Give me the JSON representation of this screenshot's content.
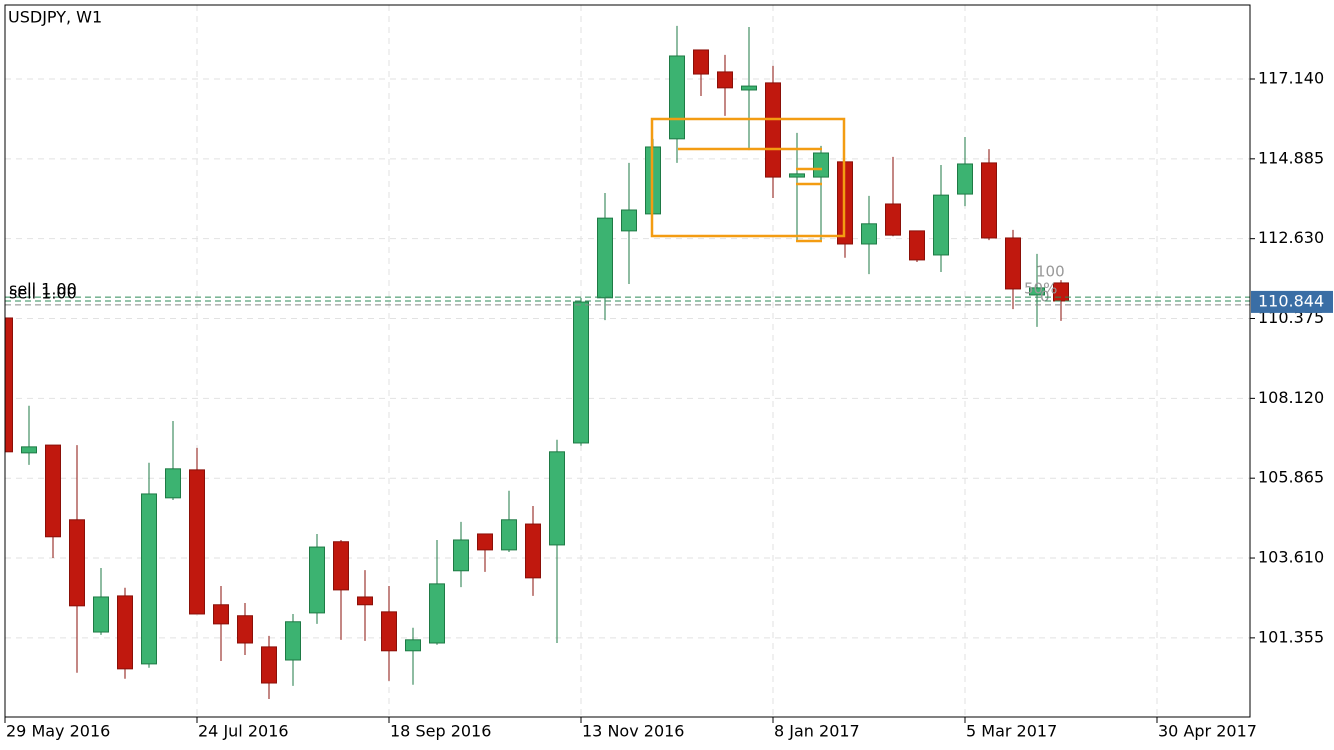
{
  "chart_data": {
    "type": "candlestick",
    "title": "USDJPY, W1",
    "open": [
      110.39,
      106.58,
      106.8,
      104.69,
      101.52,
      102.54,
      100.62,
      105.31,
      106.1,
      102.29,
      101.98,
      101.1,
      100.73,
      102.06,
      104.07,
      102.51,
      102.09,
      100.99,
      101.21,
      103.25,
      104.29,
      103.84,
      104.57,
      103.98,
      106.86,
      110.96,
      112.85,
      113.33,
      115.45,
      117.96,
      117.34,
      116.83,
      117.03,
      114.37,
      114.37,
      114.8,
      112.48,
      113.61,
      112.85,
      112.17,
      113.89,
      114.77,
      112.65,
      111.04,
      111.38
    ],
    "high": [
      110.4,
      107.91,
      106.8,
      106.8,
      103.33,
      102.77,
      106.3,
      107.48,
      106.72,
      102.82,
      102.34,
      101.41,
      102.03,
      104.29,
      104.12,
      103.27,
      102.82,
      101.64,
      104.12,
      104.63,
      104.29,
      105.51,
      105.08,
      106.95,
      110.96,
      113.92,
      114.77,
      115.45,
      118.64,
      117.96,
      117.82,
      118.61,
      117.51,
      115.62,
      115.25,
      114.8,
      113.84,
      114.94,
      112.85,
      114.71,
      115.5,
      115.16,
      112.88,
      112.2,
      111.46
    ],
    "low": [
      106.5,
      106.24,
      103.61,
      100.37,
      101.44,
      100.2,
      100.51,
      105.25,
      102.03,
      100.7,
      100.87,
      99.63,
      100.0,
      101.75,
      101.3,
      101.27,
      100.14,
      100.03,
      101.16,
      102.79,
      103.22,
      103.78,
      102.54,
      101.21,
      106.78,
      110.33,
      111.35,
      113.33,
      114.77,
      116.66,
      116.1,
      115.13,
      113.78,
      112.59,
      112.59,
      112.09,
      111.63,
      112.7,
      111.97,
      111.69,
      113.55,
      112.59,
      110.64,
      110.14,
      110.31
    ],
    "close": [
      106.61,
      106.75,
      104.21,
      102.26,
      102.51,
      100.48,
      105.42,
      106.13,
      102.03,
      101.75,
      101.21,
      100.08,
      101.81,
      103.92,
      102.71,
      102.29,
      100.99,
      101.3,
      102.88,
      104.12,
      103.84,
      104.69,
      103.05,
      106.61,
      110.84,
      113.21,
      113.44,
      115.22,
      117.79,
      117.28,
      116.89,
      116.94,
      114.37,
      114.46,
      115.05,
      112.48,
      113.05,
      112.73,
      112.03,
      113.86,
      114.74,
      112.65,
      111.21,
      111.24,
      110.87
    ],
    "up_color": "#3cb371",
    "down_color": "#c0180e",
    "ylim": [
      99.12,
      119.23
    ],
    "yticks": [
      {
        "value": 117.14,
        "label": "117.140"
      },
      {
        "value": 114.885,
        "label": "114.885"
      },
      {
        "value": 112.63,
        "label": "112.630"
      },
      {
        "value": 110.375,
        "label": "110.375"
      },
      {
        "value": 108.12,
        "label": "108.120"
      },
      {
        "value": 105.865,
        "label": "105.865"
      },
      {
        "value": 103.61,
        "label": "103.610"
      },
      {
        "value": 101.355,
        "label": "101.355"
      }
    ],
    "xlim": [
      0,
      51.875
    ],
    "xticks": [
      {
        "value": 0,
        "label": "29 May 2016"
      },
      {
        "value": 8,
        "label": "24 Jul 2016"
      },
      {
        "value": 16,
        "label": "18 Sep 2016"
      },
      {
        "value": 24,
        "label": "13 Nov 2016"
      },
      {
        "value": 32,
        "label": "8 Jan 2017"
      },
      {
        "value": 40,
        "label": "5 Mar 2017"
      },
      {
        "value": 48,
        "label": "30 Apr 2017"
      }
    ],
    "grid": true,
    "current_price": {
      "value": 110.844,
      "label": "110.844"
    },
    "orders": [
      {
        "label": "sell 1.00",
        "price": 110.98
      },
      {
        "label": "sell 1.00",
        "price": 110.87
      }
    ],
    "fib_labels": [
      "100",
      "50%",
      "0"
    ]
  }
}
